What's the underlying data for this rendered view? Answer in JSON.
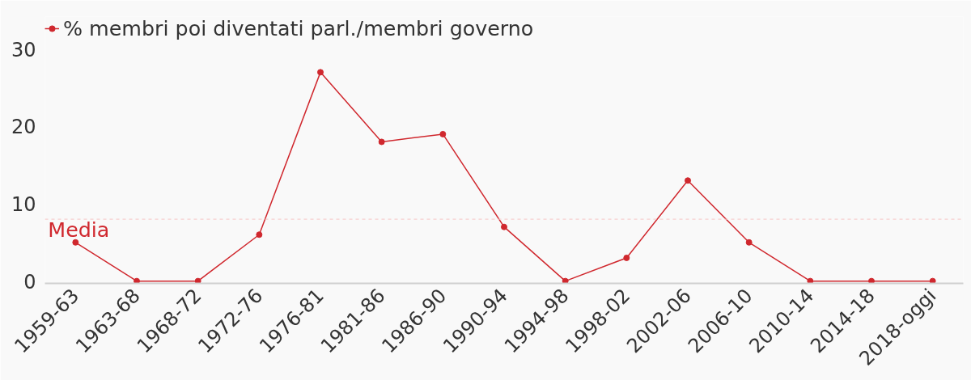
{
  "chart_data": {
    "type": "line",
    "categories": [
      "1959-63",
      "1963-68",
      "1968-72",
      "1972-76",
      "1976-81",
      "1981-86",
      "1986-90",
      "1990-94",
      "1994-98",
      "1998-02",
      "2002-06",
      "2006-10",
      "2010-14",
      "2014-18",
      "2018-oggi"
    ],
    "series": [
      {
        "name": "% membri poi diventati parl./membri governo",
        "color": "#d0282e",
        "values": [
          5,
          0,
          0,
          6,
          27,
          18,
          19,
          7,
          0,
          3,
          13,
          5,
          0,
          0,
          0
        ]
      }
    ],
    "ylim": [
      -0.3,
      34.2
    ],
    "yticks": [
      0,
      10,
      20,
      30
    ],
    "grid": false,
    "legend": "top left",
    "marker": "circle",
    "line_style": "solid",
    "ref_lines": [
      {
        "axis": "y",
        "value": 8,
        "label": "Media",
        "color": "#f6c4c4",
        "line_style": "dashed"
      }
    ]
  }
}
